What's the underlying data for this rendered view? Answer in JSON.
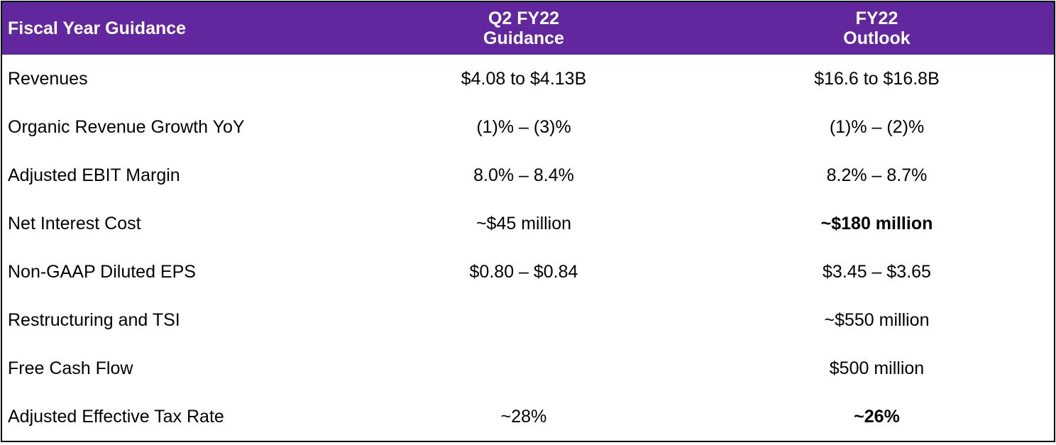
{
  "table": {
    "header": [
      "Fiscal Year Guidance",
      [
        "Q2 FY22",
        "Guidance"
      ],
      [
        "FY22",
        "Outlook"
      ]
    ],
    "header_color": "#62269e",
    "rows": [
      [
        "Revenues",
        "$4.08 to $4.13B",
        "$16.6 to $16.8B"
      ],
      [
        "Organic Revenue Growth YoY",
        "(1)% – (3)%",
        "(1)% – (2)%"
      ],
      [
        "Adjusted EBIT Margin",
        "8.0% – 8.4%",
        "8.2% – 8.7%"
      ],
      [
        "Net Interest Cost",
        "~$45 million",
        {
          "text": "~$180 million",
          "bold": true
        }
      ],
      [
        "Non-GAAP Diluted EPS",
        "$0.80 – $0.84",
        "$3.45 – $3.65"
      ],
      [
        "Restructuring and TSI",
        null,
        "~$550 million"
      ],
      [
        "Free Cash Flow",
        null,
        "$500 million"
      ],
      [
        "Adjusted Effective Tax Rate",
        "~28%",
        {
          "text": "~26%",
          "bold": true
        }
      ]
    ]
  }
}
